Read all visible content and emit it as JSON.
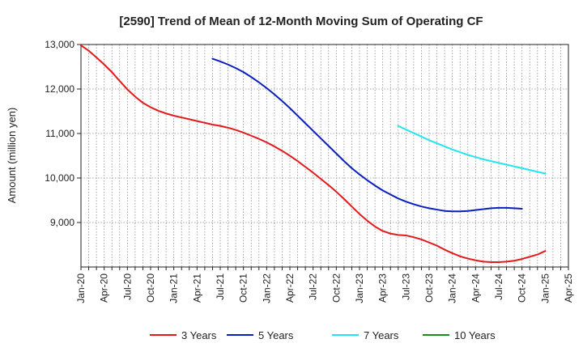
{
  "chart_data": {
    "type": "line",
    "title": "[2590]  Trend of Mean of 12-Month Moving Sum of Operating CF",
    "xlabel": "",
    "ylabel": "Amount (million yen)",
    "ylim": [
      8000,
      13000
    ],
    "yticks": [
      9000,
      10000,
      11000,
      12000,
      13000
    ],
    "ytick_labels": [
      "9,000",
      "10,000",
      "11,000",
      "12,000",
      "13,000"
    ],
    "x_months": [
      "Jan-20",
      "Feb-20",
      "Mar-20",
      "Apr-20",
      "May-20",
      "Jun-20",
      "Jul-20",
      "Aug-20",
      "Sep-20",
      "Oct-20",
      "Nov-20",
      "Dec-20",
      "Jan-21",
      "Feb-21",
      "Mar-21",
      "Apr-21",
      "May-21",
      "Jun-21",
      "Jul-21",
      "Aug-21",
      "Sep-21",
      "Oct-21",
      "Nov-21",
      "Dec-21",
      "Jan-22",
      "Feb-22",
      "Mar-22",
      "Apr-22",
      "May-22",
      "Jun-22",
      "Jul-22",
      "Aug-22",
      "Sep-22",
      "Oct-22",
      "Nov-22",
      "Dec-22",
      "Jan-23",
      "Feb-23",
      "Mar-23",
      "Apr-23",
      "May-23",
      "Jun-23",
      "Jul-23",
      "Aug-23",
      "Sep-23",
      "Oct-23",
      "Nov-23",
      "Dec-23",
      "Jan-24",
      "Feb-24",
      "Mar-24",
      "Apr-24",
      "May-24",
      "Jun-24",
      "Jul-24",
      "Aug-24",
      "Sep-24",
      "Oct-24",
      "Nov-24",
      "Dec-24",
      "Jan-25",
      "Feb-25",
      "Mar-25",
      "Apr-25"
    ],
    "xtick_labels": [
      "Jan-20",
      "Apr-20",
      "Jul-20",
      "Oct-20",
      "Jan-21",
      "Apr-21",
      "Jul-21",
      "Oct-21",
      "Jan-22",
      "Apr-22",
      "Jul-22",
      "Oct-22",
      "Jan-23",
      "Apr-23",
      "Jul-23",
      "Oct-23",
      "Jan-24",
      "Apr-24",
      "Jul-24",
      "Oct-24",
      "Jan-25",
      "Apr-25"
    ],
    "legend_position": "bottom",
    "grid": true,
    "series": [
      {
        "name": "3 Years",
        "color": "#e31a1c",
        "start": "Jan-20",
        "values": [
          12980,
          12860,
          12710,
          12550,
          12380,
          12180,
          11990,
          11830,
          11690,
          11590,
          11510,
          11450,
          11400,
          11360,
          11320,
          11280,
          11240,
          11200,
          11170,
          11130,
          11080,
          11020,
          10950,
          10880,
          10800,
          10710,
          10610,
          10500,
          10380,
          10250,
          10120,
          9980,
          9840,
          9690,
          9530,
          9360,
          9190,
          9040,
          8910,
          8810,
          8750,
          8720,
          8710,
          8670,
          8620,
          8550,
          8480,
          8390,
          8310,
          8240,
          8190,
          8150,
          8120,
          8110,
          8110,
          8120,
          8140,
          8180,
          8230,
          8280,
          8360
        ]
      },
      {
        "name": "5 Years",
        "color": "#0a1fbf",
        "start": "Jun-21",
        "values": [
          12680,
          12620,
          12550,
          12470,
          12380,
          12270,
          12150,
          12020,
          11880,
          11730,
          11570,
          11400,
          11230,
          11060,
          10890,
          10720,
          10550,
          10380,
          10220,
          10080,
          9950,
          9830,
          9720,
          9630,
          9540,
          9470,
          9410,
          9360,
          9320,
          9290,
          9260,
          9250,
          9250,
          9260,
          9280,
          9300,
          9320,
          9330,
          9330,
          9320,
          9310
        ]
      },
      {
        "name": "7 Years",
        "color": "#22e5ef",
        "start": "Jun-23",
        "values": [
          11170,
          11090,
          11010,
          10930,
          10850,
          10780,
          10710,
          10640,
          10580,
          10520,
          10470,
          10420,
          10380,
          10340,
          10300,
          10260,
          10220,
          10180,
          10140,
          10100
        ]
      },
      {
        "name": "10 Years",
        "color": "#1e8a1e",
        "start": "Jan-20",
        "values": []
      }
    ]
  }
}
